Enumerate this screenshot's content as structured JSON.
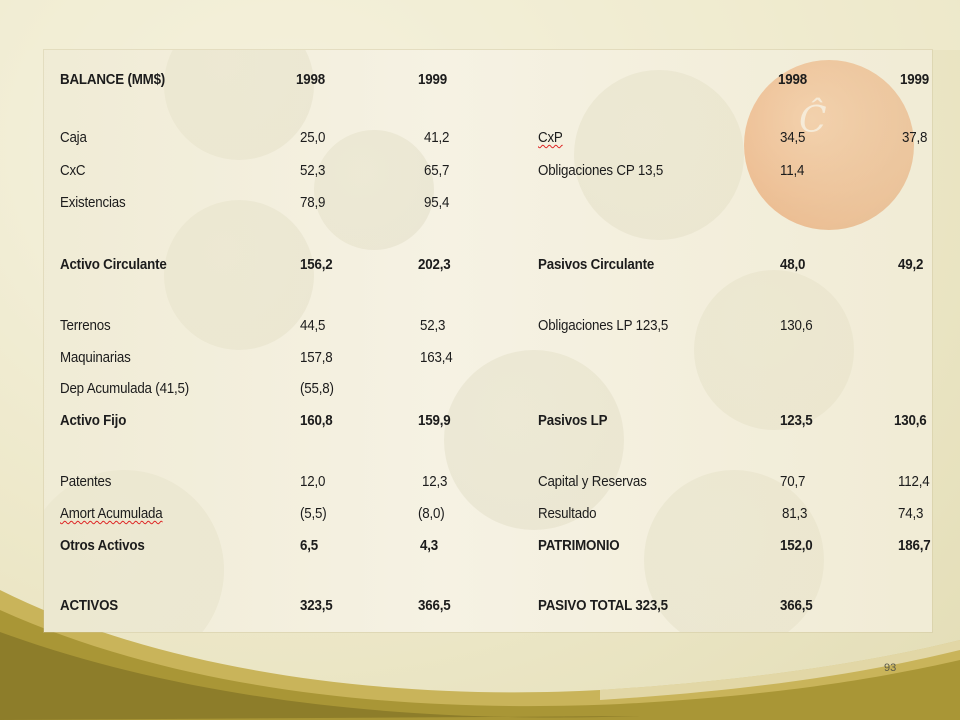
{
  "slide": {
    "page_number": "93"
  },
  "table": {
    "left_header": [
      "BALANCE (MM$)",
      "1998",
      "1999"
    ],
    "right_header": [
      "1998",
      "1999"
    ],
    "rows": [
      {
        "c1": "Caja",
        "c2": "25,0",
        "c3": "41,2",
        "c4": "CxP",
        "c5": "34,5",
        "c6": "37,8"
      },
      {
        "c1": "CxC",
        "c2": "52,3",
        "c3": "65,7",
        "c4": "Obligaciones CP  13,5",
        "c5": "11,4",
        "c6": ""
      },
      {
        "c1": "Existencias",
        "c2": "78,9",
        "c3": "95,4",
        "c4": "",
        "c5": "",
        "c6": ""
      },
      {
        "c1": "Activo Circulante",
        "c2": "156,2",
        "c3": "202,3",
        "c4": "Pasivos Circulante",
        "c5": "48,0",
        "c6": "49,2"
      },
      {
        "c1": "Terrenos",
        "c2": "44,5",
        "c3": "52,3",
        "c4": "Obligaciones LP  123,5",
        "c5": "130,6",
        "c6": ""
      },
      {
        "c1": "Maquinarias",
        "c2": "157,8",
        "c3": "163,4",
        "c4": "",
        "c5": "",
        "c6": ""
      },
      {
        "c1": "Dep Acumulada   (41,5)",
        "c2": "(55,8)",
        "c3": "",
        "c4": "",
        "c5": "",
        "c6": ""
      },
      {
        "c1": "Activo Fijo",
        "c2": "160,8",
        "c3": "159,9",
        "c4": "Pasivos LP",
        "c5": "123,5",
        "c6": "130,6"
      },
      {
        "c1": "Patentes",
        "c2": "12,0",
        "c3": "12,3",
        "c4": "Capital y Reservas",
        "c5": "70,7",
        "c6": "112,4"
      },
      {
        "c1": "Amort Acumulada",
        "c2": "(5,5)",
        "c3": "(8,0)",
        "c4": "Resultado",
        "c5": "81,3",
        "c6": "74,3"
      },
      {
        "c1": "Otros Activos",
        "c2": "6,5",
        "c3": "4,3",
        "c4": "PATRIMONIO",
        "c5": "152,0",
        "c6": "186,7"
      },
      {
        "c1": "ACTIVOS",
        "c2": "323,5",
        "c3": "366,5",
        "c4": "PASIVO TOTAL  323,5",
        "c5": "366,5",
        "c6": ""
      }
    ]
  }
}
